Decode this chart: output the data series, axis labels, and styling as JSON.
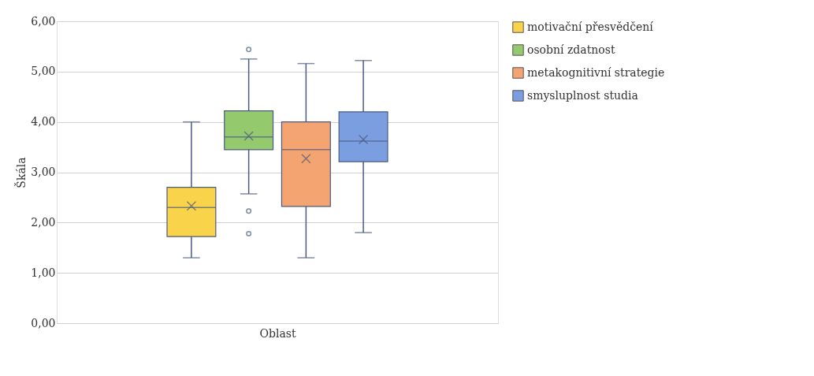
{
  "chart_data": {
    "type": "box",
    "ylabel": "Škála",
    "xlabel": "Oblast",
    "categories": [
      null
    ],
    "ylim": [
      0,
      6
    ],
    "yticks": [
      {
        "value": 0,
        "label": "0,00"
      },
      {
        "value": 1,
        "label": "1,00"
      },
      {
        "value": 2,
        "label": "2,00"
      },
      {
        "value": 3,
        "label": "3,00"
      },
      {
        "value": 4,
        "label": "4,00"
      },
      {
        "value": 5,
        "label": "5,00"
      },
      {
        "value": 6,
        "label": "6,00"
      }
    ],
    "grid": "y",
    "legend": "right",
    "series": [
      {
        "name": "motivační přesvědčení",
        "color": "#f9d44a",
        "boxes": [
          {
            "low": 1.3,
            "q1": 1.72,
            "median": 2.3,
            "q3": 2.7,
            "high": 4.0,
            "mean": 2.33
          }
        ]
      },
      {
        "name": "osobní zdatnost",
        "color": "#94c96e",
        "boxes": [
          {
            "low": 2.57,
            "q1": 3.45,
            "median": 3.7,
            "q3": 4.22,
            "high": 5.25,
            "mean": 3.72,
            "outliers": [
              5.44,
              2.23,
              1.78
            ]
          }
        ]
      },
      {
        "name": "metakognitivní strategie",
        "color": "#f4a470",
        "boxes": [
          {
            "low": 1.3,
            "q1": 2.32,
            "median": 3.45,
            "q3": 4.0,
            "high": 5.16,
            "mean": 3.27
          }
        ]
      },
      {
        "name": "smysluplnost studia",
        "color": "#7a9ee0",
        "boxes": [
          {
            "low": 1.8,
            "q1": 3.21,
            "median": 3.62,
            "q3": 4.2,
            "high": 5.22,
            "mean": 3.65
          }
        ]
      }
    ]
  }
}
